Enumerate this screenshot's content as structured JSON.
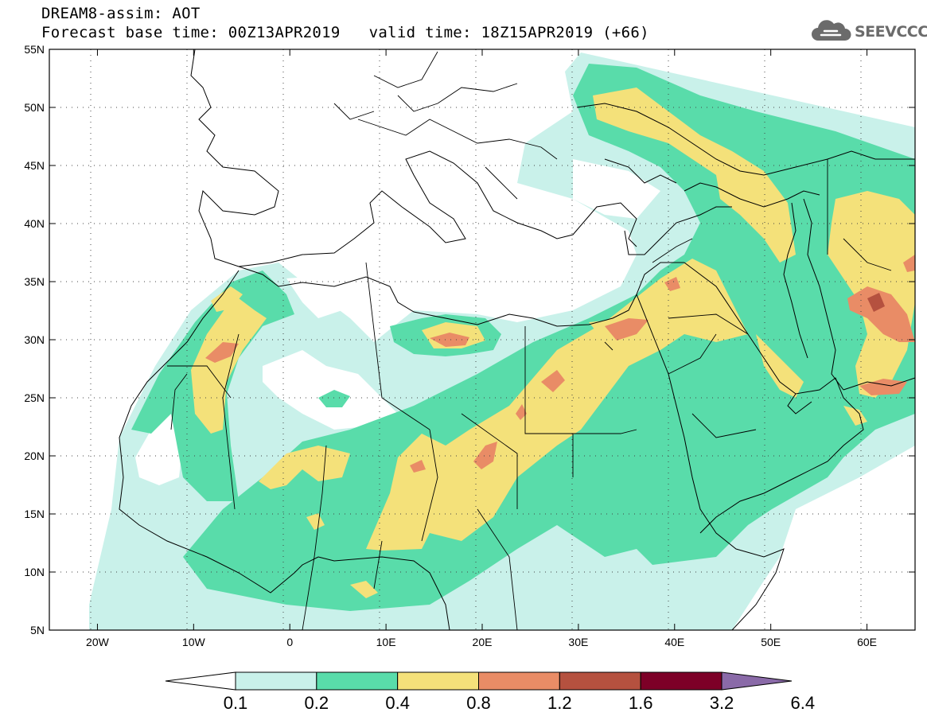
{
  "header": {
    "line1": "DREAM8-assim: AOT",
    "base_time": "Forecast base time: 00Z13APR2019",
    "valid_time": "valid time: 18Z15APR2019 (+66)"
  },
  "logo": {
    "text": "SEEVCCC",
    "icon": "cloud-logo-icon",
    "color": "#6b6b6b"
  },
  "map": {
    "lon_range": [
      -25,
      65
    ],
    "lat_range": [
      5,
      55
    ],
    "lat_ticks": [
      "55N",
      "50N",
      "45N",
      "40N",
      "35N",
      "30N",
      "25N",
      "20N",
      "15N",
      "10N",
      "5N"
    ],
    "lon_ticks": [
      "20W",
      "10W",
      "0",
      "10E",
      "20E",
      "30E",
      "40E",
      "50E",
      "60E"
    ],
    "grid": "dotted"
  },
  "legend": {
    "colors": [
      "#c9f1ea",
      "#59dcaa",
      "#f4e17a",
      "#e98c66",
      "#b5513f",
      "#7d0027",
      "#3d2613",
      "#8a6aa8"
    ],
    "labels": [
      "0.1",
      "0.2",
      "0.4",
      "0.8",
      "1.2",
      "1.6",
      "3.2",
      "6.4"
    ]
  }
}
